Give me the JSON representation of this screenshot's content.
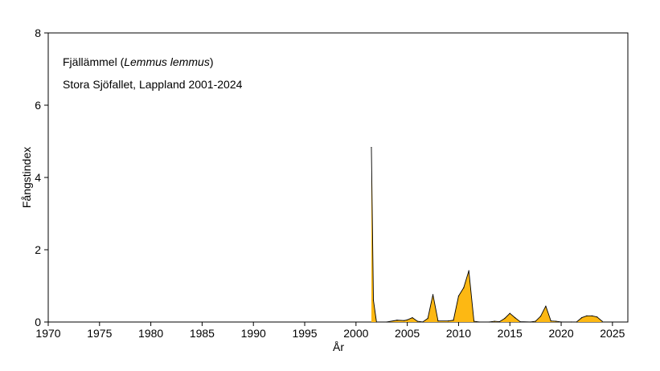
{
  "chart_data": {
    "type": "area",
    "annotation_line1_prefix": "Fjällämmel (",
    "annotation_line1_italic": "Lemmus lemmus",
    "annotation_line1_suffix": ")",
    "annotation_line2": "Stora Sjöfallet, Lappland 2001-2024",
    "xlabel": "År",
    "ylabel": "Fångstindex",
    "xlim": [
      1970,
      2026.5
    ],
    "ylim": [
      0,
      8
    ],
    "x_ticks": [
      "1970",
      "1975",
      "1980",
      "1985",
      "1990",
      "1995",
      "2000",
      "2005",
      "2010",
      "2015",
      "2020",
      "2025"
    ],
    "y_ticks": [
      "0",
      "2",
      "4",
      "6",
      "8"
    ],
    "fill_color": "#FDB813",
    "stroke_color": "#000000",
    "series": [
      {
        "x": [
          2001.5,
          2001.7,
          2002,
          2003,
          2004,
          2004.7,
          2005,
          2005.5,
          2006,
          2006.5,
          2007,
          2007.5,
          2008,
          2009,
          2009.5,
          2010,
          2010.5,
          2011,
          2011.5,
          2012,
          2013,
          2013.5,
          2014,
          2014.5,
          2015,
          2015.5,
          2016,
          2017,
          2017.5,
          2018,
          2018.5,
          2019,
          2019.5,
          2020,
          2021,
          2021.5,
          2022,
          2022.5,
          2023,
          2023.5,
          2024
        ],
        "y": [
          4.83,
          0.6,
          0,
          0,
          0.05,
          0.04,
          0.06,
          0.12,
          0.02,
          0,
          0.1,
          0.76,
          0.03,
          0.03,
          0.05,
          0.72,
          0.95,
          1.42,
          0.02,
          0,
          0,
          0.02,
          0.01,
          0.1,
          0.24,
          0.12,
          0.01,
          0,
          0.02,
          0.16,
          0.44,
          0.03,
          0.02,
          0,
          0,
          0,
          0.12,
          0.17,
          0.17,
          0.14,
          0.02
        ]
      }
    ]
  }
}
